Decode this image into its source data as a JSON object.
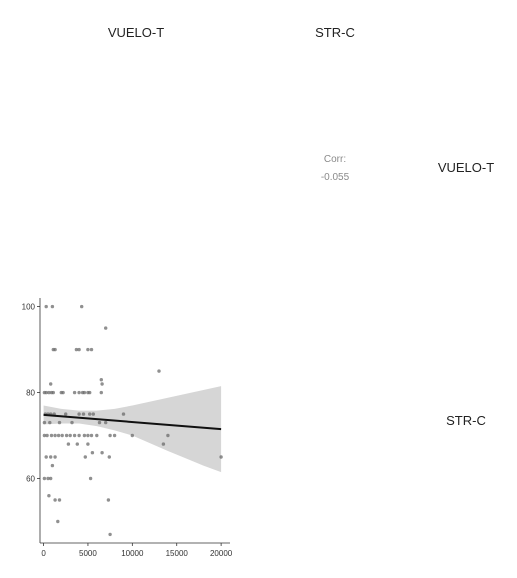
{
  "variables": [
    "VUELO-T",
    "STR-C"
  ],
  "correlation": {
    "label": "Corr:",
    "value": "-0.055"
  },
  "chart_data": {
    "type": "scatter",
    "title": "",
    "xlabel": "",
    "ylabel": "",
    "x_variable": "VUELO-T",
    "y_variable": "STR-C",
    "xlim": [
      -400,
      21000
    ],
    "ylim": [
      45,
      102
    ],
    "x_ticks": [
      0,
      5000,
      10000,
      15000,
      20000
    ],
    "y_ticks": [
      60,
      80,
      100
    ],
    "x_tick_labels": [
      "0",
      "5000",
      "10000",
      "15000",
      "20000"
    ],
    "y_tick_labels": [
      "60",
      "80",
      "100"
    ],
    "grid": false,
    "points": [
      {
        "x": 300,
        "y": 100
      },
      {
        "x": 1000,
        "y": 100
      },
      {
        "x": 4300,
        "y": 100
      },
      {
        "x": 1100,
        "y": 90
      },
      {
        "x": 1300,
        "y": 90
      },
      {
        "x": 3700,
        "y": 90
      },
      {
        "x": 4000,
        "y": 90
      },
      {
        "x": 5000,
        "y": 90
      },
      {
        "x": 5400,
        "y": 90
      },
      {
        "x": 7000,
        "y": 95
      },
      {
        "x": 6500,
        "y": 83
      },
      {
        "x": 6600,
        "y": 82
      },
      {
        "x": 13000,
        "y": 85
      },
      {
        "x": 100,
        "y": 80
      },
      {
        "x": 300,
        "y": 80
      },
      {
        "x": 600,
        "y": 80
      },
      {
        "x": 900,
        "y": 80
      },
      {
        "x": 1100,
        "y": 80
      },
      {
        "x": 2000,
        "y": 80
      },
      {
        "x": 2200,
        "y": 80
      },
      {
        "x": 3500,
        "y": 80
      },
      {
        "x": 4000,
        "y": 80
      },
      {
        "x": 4400,
        "y": 80
      },
      {
        "x": 4600,
        "y": 80
      },
      {
        "x": 5000,
        "y": 80
      },
      {
        "x": 5200,
        "y": 80
      },
      {
        "x": 6500,
        "y": 80
      },
      {
        "x": 800,
        "y": 82
      },
      {
        "x": 200,
        "y": 75
      },
      {
        "x": 500,
        "y": 75
      },
      {
        "x": 800,
        "y": 75
      },
      {
        "x": 1200,
        "y": 75
      },
      {
        "x": 2500,
        "y": 75
      },
      {
        "x": 4000,
        "y": 75
      },
      {
        "x": 4500,
        "y": 75
      },
      {
        "x": 5200,
        "y": 75
      },
      {
        "x": 5600,
        "y": 75
      },
      {
        "x": 9000,
        "y": 75
      },
      {
        "x": 100,
        "y": 73
      },
      {
        "x": 700,
        "y": 73
      },
      {
        "x": 1800,
        "y": 73
      },
      {
        "x": 3200,
        "y": 73
      },
      {
        "x": 6300,
        "y": 73
      },
      {
        "x": 7000,
        "y": 73
      },
      {
        "x": 100,
        "y": 70
      },
      {
        "x": 400,
        "y": 70
      },
      {
        "x": 900,
        "y": 70
      },
      {
        "x": 1300,
        "y": 70
      },
      {
        "x": 1700,
        "y": 70
      },
      {
        "x": 2100,
        "y": 70
      },
      {
        "x": 2600,
        "y": 70
      },
      {
        "x": 3000,
        "y": 70
      },
      {
        "x": 3500,
        "y": 70
      },
      {
        "x": 4000,
        "y": 70
      },
      {
        "x": 4600,
        "y": 70
      },
      {
        "x": 5000,
        "y": 70
      },
      {
        "x": 5400,
        "y": 70
      },
      {
        "x": 6000,
        "y": 70
      },
      {
        "x": 7500,
        "y": 70
      },
      {
        "x": 8000,
        "y": 70
      },
      {
        "x": 10000,
        "y": 70
      },
      {
        "x": 14000,
        "y": 70
      },
      {
        "x": 2800,
        "y": 68
      },
      {
        "x": 3800,
        "y": 68
      },
      {
        "x": 5000,
        "y": 68
      },
      {
        "x": 13500,
        "y": 68
      },
      {
        "x": 300,
        "y": 65
      },
      {
        "x": 800,
        "y": 65
      },
      {
        "x": 1300,
        "y": 65
      },
      {
        "x": 4700,
        "y": 65
      },
      {
        "x": 5500,
        "y": 66
      },
      {
        "x": 6600,
        "y": 66
      },
      {
        "x": 20000,
        "y": 65
      },
      {
        "x": 1000,
        "y": 63
      },
      {
        "x": 7400,
        "y": 65
      },
      {
        "x": 100,
        "y": 60
      },
      {
        "x": 500,
        "y": 60
      },
      {
        "x": 800,
        "y": 60
      },
      {
        "x": 5300,
        "y": 60
      },
      {
        "x": 600,
        "y": 56
      },
      {
        "x": 1300,
        "y": 55
      },
      {
        "x": 1800,
        "y": 55
      },
      {
        "x": 7300,
        "y": 55
      },
      {
        "x": 1600,
        "y": 50
      },
      {
        "x": 7500,
        "y": 47
      }
    ],
    "regression": {
      "method": "linear",
      "line": [
        {
          "x": 0,
          "y": 74.8
        },
        {
          "x": 20000,
          "y": 71.5
        }
      ],
      "confidence_band": {
        "x": [
          0,
          2000,
          4000,
          6000,
          8000,
          10000,
          12000,
          14000,
          16000,
          18000,
          20000
        ],
        "upper": [
          77.0,
          76.2,
          75.8,
          75.8,
          76.2,
          77.0,
          77.9,
          78.8,
          79.7,
          80.6,
          81.5
        ],
        "lower": [
          72.6,
          72.8,
          72.8,
          72.2,
          71.2,
          70.0,
          68.2,
          66.4,
          64.7,
          63.0,
          61.5
        ]
      }
    }
  }
}
